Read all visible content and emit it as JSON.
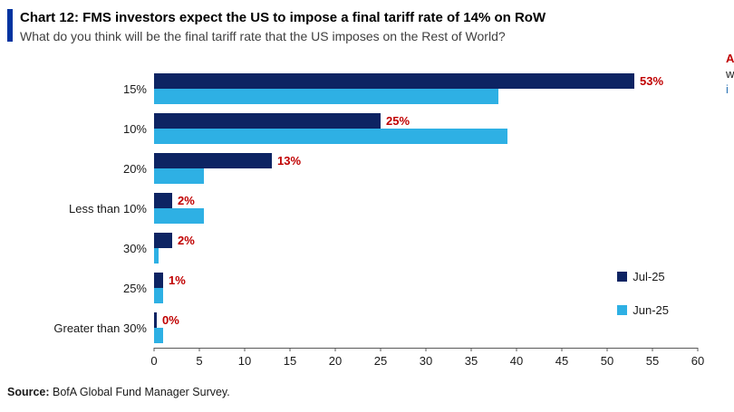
{
  "header": {
    "title": "Chart 12: FMS investors expect the US to impose a final tariff rate of 14% on RoW",
    "subtitle": "What do you think will be the final tariff rate that the US imposes on the Rest of World?",
    "accent_color": "#0033a0"
  },
  "source": {
    "label": "Source:",
    "text": " BofA Global Fund Manager Survey."
  },
  "right_edge_fragments": [
    {
      "text": "A",
      "color": "#c00000",
      "bold": true
    },
    {
      "text": "w",
      "color": "#1f1f1f",
      "bold": false
    },
    {
      "text": "i",
      "color": "#2e74b5",
      "bold": false
    }
  ],
  "chart_data": {
    "type": "bar",
    "orientation": "horizontal",
    "title": "Chart 12: FMS investors expect the US to impose a final tariff rate of 14% on RoW",
    "categories": [
      "15%",
      "10%",
      "20%",
      "Less than 10%",
      "30%",
      "25%",
      "Greater than 30%"
    ],
    "series": [
      {
        "name": "Jul-25",
        "color": "#0d2463",
        "values": [
          53,
          25,
          13,
          2,
          2,
          1,
          0
        ],
        "data_labels": [
          "53%",
          "25%",
          "13%",
          "2%",
          "2%",
          "1%",
          "0%"
        ]
      },
      {
        "name": "Jun-25",
        "color": "#2eb0e4",
        "values": [
          38,
          39,
          5.5,
          5.5,
          0.5,
          1,
          1
        ]
      }
    ],
    "xlim": [
      0,
      60
    ],
    "x_ticks": [
      0,
      5,
      10,
      15,
      20,
      25,
      30,
      35,
      40,
      45,
      50,
      55,
      60
    ],
    "data_label_color": "#c00000",
    "legend_position": "right",
    "grid": false
  }
}
